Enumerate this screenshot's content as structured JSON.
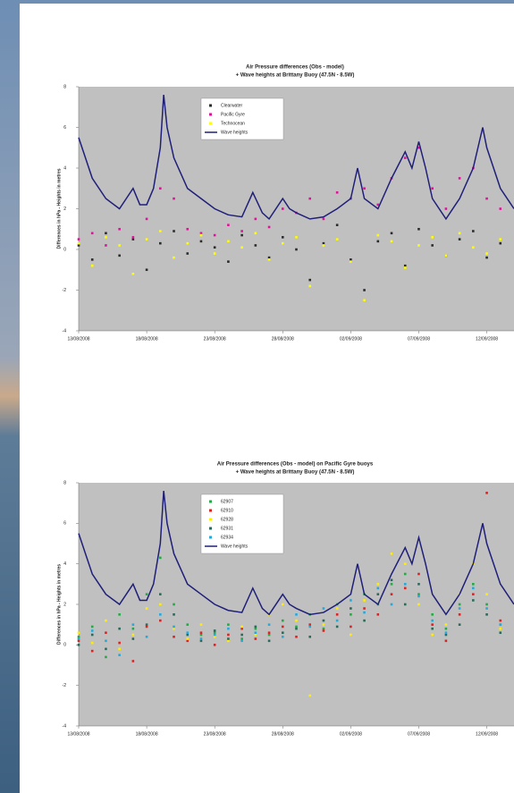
{
  "chart_data": [
    {
      "type": "scatter",
      "title": "Air Pressure differences (Obs - model)",
      "subtitle": "+ Wave heights at Brittany Buoy (47.5N - 8.5W)",
      "y_label": "Differences in hPa - Heights in metres",
      "xlim": [
        0,
        32
      ],
      "ylim": [
        -4,
        8
      ],
      "xticks": [
        {
          "value": 0,
          "label": "13/08/2008"
        },
        {
          "value": 5,
          "label": "18/08/2008"
        },
        {
          "value": 10,
          "label": "23/08/2008"
        },
        {
          "value": 15,
          "label": "28/08/2008"
        },
        {
          "value": 20,
          "label": "02/09/2008"
        },
        {
          "value": 25,
          "label": "07/09/2008"
        },
        {
          "value": 30,
          "label": "12/09/2008"
        }
      ],
      "yticks": [
        -4,
        -2,
        0,
        2,
        4,
        6,
        8
      ],
      "x": [
        0,
        1,
        2,
        3,
        4,
        5,
        6,
        7,
        8,
        9,
        10,
        11,
        12,
        13,
        14,
        15,
        16,
        17,
        18,
        19,
        20,
        21,
        22,
        23,
        24,
        25,
        26,
        27,
        28,
        29,
        30,
        31
      ],
      "series": [
        {
          "name": "Clearwater",
          "color": "#2b2b2b",
          "values": [
            0.2,
            -0.5,
            0.8,
            -0.3,
            0.5,
            -1.0,
            0.3,
            0.9,
            -0.2,
            0.4,
            0.1,
            -0.6,
            0.7,
            0.2,
            -0.4,
            0.6,
            0.0,
            -1.5,
            0.3,
            1.2,
            -0.5,
            -2.0,
            0.4,
            0.8,
            -0.8,
            1.0,
            0.2,
            -0.3,
            0.5,
            0.9,
            -0.4,
            0.3
          ]
        },
        {
          "name": "Pacific Gyre",
          "color": "#e0119a",
          "values": [
            0.5,
            0.8,
            0.2,
            1.0,
            0.6,
            1.5,
            3.0,
            2.5,
            1.0,
            0.8,
            0.7,
            1.2,
            0.9,
            1.5,
            1.1,
            2.0,
            1.8,
            2.5,
            1.5,
            2.8,
            2.5,
            3.0,
            2.2,
            3.5,
            4.5,
            5.0,
            3.0,
            2.0,
            3.5,
            4.0,
            2.5,
            2.0
          ]
        },
        {
          "name": "Technocean",
          "color": "#ffff00",
          "values": [
            0.3,
            -0.8,
            0.6,
            0.2,
            -1.2,
            0.5,
            0.9,
            -0.4,
            0.3,
            0.7,
            -0.2,
            0.4,
            0.1,
            0.8,
            -0.5,
            0.3,
            0.6,
            -1.8,
            0.2,
            0.5,
            -0.6,
            -2.5,
            0.7,
            0.4,
            -0.9,
            0.2,
            0.6,
            -0.3,
            0.8,
            0.1,
            -0.2,
            0.5
          ]
        },
        {
          "name": "Wave heights",
          "color": "#1f1f7a",
          "mode": "line",
          "x": [
            0,
            0.5,
            1,
            2,
            3,
            3.5,
            4,
            4.5,
            5,
            5.5,
            6,
            6.25,
            6.5,
            7,
            8,
            9,
            10,
            11,
            12,
            12.8,
            13.5,
            14,
            15,
            15.5,
            16,
            17,
            18,
            19,
            20,
            20.5,
            21,
            22,
            23,
            24,
            24.5,
            25,
            25.5,
            26,
            27,
            28,
            29,
            29.7,
            30,
            31,
            32
          ],
          "values": [
            5.5,
            4.5,
            3.5,
            2.5,
            2.0,
            2.5,
            3.0,
            2.2,
            2.2,
            3.0,
            5.0,
            7.6,
            6.0,
            4.5,
            3.0,
            2.5,
            2.0,
            1.7,
            1.6,
            2.8,
            1.8,
            1.5,
            2.5,
            2.0,
            1.8,
            1.5,
            1.6,
            2.0,
            2.5,
            4.0,
            2.5,
            2.0,
            3.5,
            4.8,
            4.0,
            5.3,
            4.0,
            2.5,
            1.5,
            2.5,
            4.0,
            6.0,
            5.0,
            3.0,
            2.0
          ]
        }
      ]
    },
    {
      "type": "scatter",
      "title": "Air Pressure differences (Obs - model) on Pacific Gyre buoys",
      "subtitle": "+ Wave heights at Brittany Buoy (47.5N - 8.5W)",
      "y_label": "Differences in hPa - Heights in metres",
      "xlim": [
        0,
        32
      ],
      "ylim": [
        -4,
        8
      ],
      "xticks": [
        {
          "value": 0,
          "label": "13/08/2008"
        },
        {
          "value": 5,
          "label": "18/08/2008"
        },
        {
          "value": 10,
          "label": "23/08/2008"
        },
        {
          "value": 15,
          "label": "28/08/2008"
        },
        {
          "value": 20,
          "label": "02/09/2008"
        },
        {
          "value": 25,
          "label": "07/09/2008"
        },
        {
          "value": 30,
          "label": "12/09/2008"
        }
      ],
      "yticks": [
        -4,
        -2,
        0,
        2,
        4,
        6,
        8
      ],
      "x": [
        0,
        1,
        2,
        3,
        4,
        5,
        6,
        7,
        8,
        9,
        10,
        11,
        12,
        13,
        14,
        15,
        16,
        17,
        18,
        19,
        20,
        21,
        22,
        23,
        24,
        25,
        26,
        27,
        28,
        29,
        30,
        31
      ],
      "series": [
        {
          "name": "62907",
          "color": "#22aa44",
          "values": [
            0.4,
            0.9,
            -0.6,
            1.5,
            0.8,
            2.5,
            4.3,
            2.0,
            1.0,
            0.5,
            0.6,
            1.0,
            0.3,
            0.8,
            0.5,
            1.2,
            0.9,
            1.5,
            0.8,
            2.0,
            1.5,
            2.5,
            2.0,
            3.0,
            3.5,
            2.5,
            1.5,
            0.8,
            2.0,
            3.0,
            2.0,
            1.0
          ]
        },
        {
          "name": "62910",
          "color": "#dd2222",
          "values": [
            0.2,
            -0.3,
            0.6,
            0.1,
            -0.8,
            0.9,
            1.2,
            0.4,
            0.2,
            0.6,
            0.0,
            0.5,
            0.8,
            0.3,
            0.6,
            0.9,
            0.4,
            1.0,
            0.7,
            1.5,
            0.9,
            1.8,
            1.5,
            2.5,
            2.8,
            3.5,
            1.0,
            0.2,
            1.5,
            2.5,
            7.5,
            1.2
          ]
        },
        {
          "name": "62928",
          "color": "#ffee00",
          "values": [
            0.6,
            0.1,
            1.2,
            -0.2,
            0.5,
            1.8,
            2.0,
            0.8,
            0.3,
            1.0,
            0.4,
            0.2,
            0.9,
            0.5,
            1.5,
            2.0,
            1.2,
            -2.5,
            1.0,
            1.8,
            0.5,
            2.2,
            3.0,
            4.5,
            4.0,
            2.0,
            0.5,
            1.0,
            2.5,
            4.0,
            2.5,
            0.8
          ]
        },
        {
          "name": "62931",
          "color": "#2a6a5a",
          "values": [
            0.0,
            0.5,
            -0.2,
            0.8,
            0.3,
            1.0,
            2.5,
            1.5,
            0.5,
            0.2,
            0.7,
            0.3,
            0.5,
            0.9,
            0.2,
            0.6,
            0.8,
            0.4,
            1.2,
            0.9,
            1.8,
            1.2,
            2.5,
            3.2,
            2.0,
            3.0,
            0.8,
            0.5,
            1.0,
            2.2,
            1.5,
            0.6
          ]
        },
        {
          "name": "62934",
          "color": "#22aadd",
          "values": [
            0.3,
            0.7,
            0.2,
            -0.5,
            1.0,
            0.4,
            1.5,
            0.9,
            0.6,
            0.3,
            0.5,
            0.8,
            0.2,
            0.6,
            1.0,
            0.4,
            1.5,
            0.9,
            1.8,
            1.2,
            2.2,
            1.6,
            2.8,
            2.0,
            3.0,
            2.4,
            1.2,
            0.6,
            1.8,
            2.8,
            1.8,
            1.0
          ]
        },
        {
          "name": "Wave heights",
          "color": "#1f1f7a",
          "mode": "line",
          "x": [
            0,
            0.5,
            1,
            2,
            3,
            3.5,
            4,
            4.5,
            5,
            5.5,
            6,
            6.25,
            6.5,
            7,
            8,
            9,
            10,
            11,
            12,
            12.8,
            13.5,
            14,
            15,
            15.5,
            16,
            17,
            18,
            19,
            20,
            20.5,
            21,
            22,
            23,
            24,
            24.5,
            25,
            25.5,
            26,
            27,
            28,
            29,
            29.7,
            30,
            31,
            32
          ],
          "values": [
            5.5,
            4.5,
            3.5,
            2.5,
            2.0,
            2.5,
            3.0,
            2.2,
            2.2,
            3.0,
            5.0,
            7.6,
            6.0,
            4.5,
            3.0,
            2.5,
            2.0,
            1.7,
            1.6,
            2.8,
            1.8,
            1.5,
            2.5,
            2.0,
            1.8,
            1.5,
            1.6,
            2.0,
            2.5,
            4.0,
            2.5,
            2.0,
            3.5,
            4.8,
            4.0,
            5.3,
            4.0,
            2.5,
            1.5,
            2.5,
            4.0,
            6.0,
            5.0,
            3.0,
            2.0
          ]
        }
      ]
    }
  ]
}
